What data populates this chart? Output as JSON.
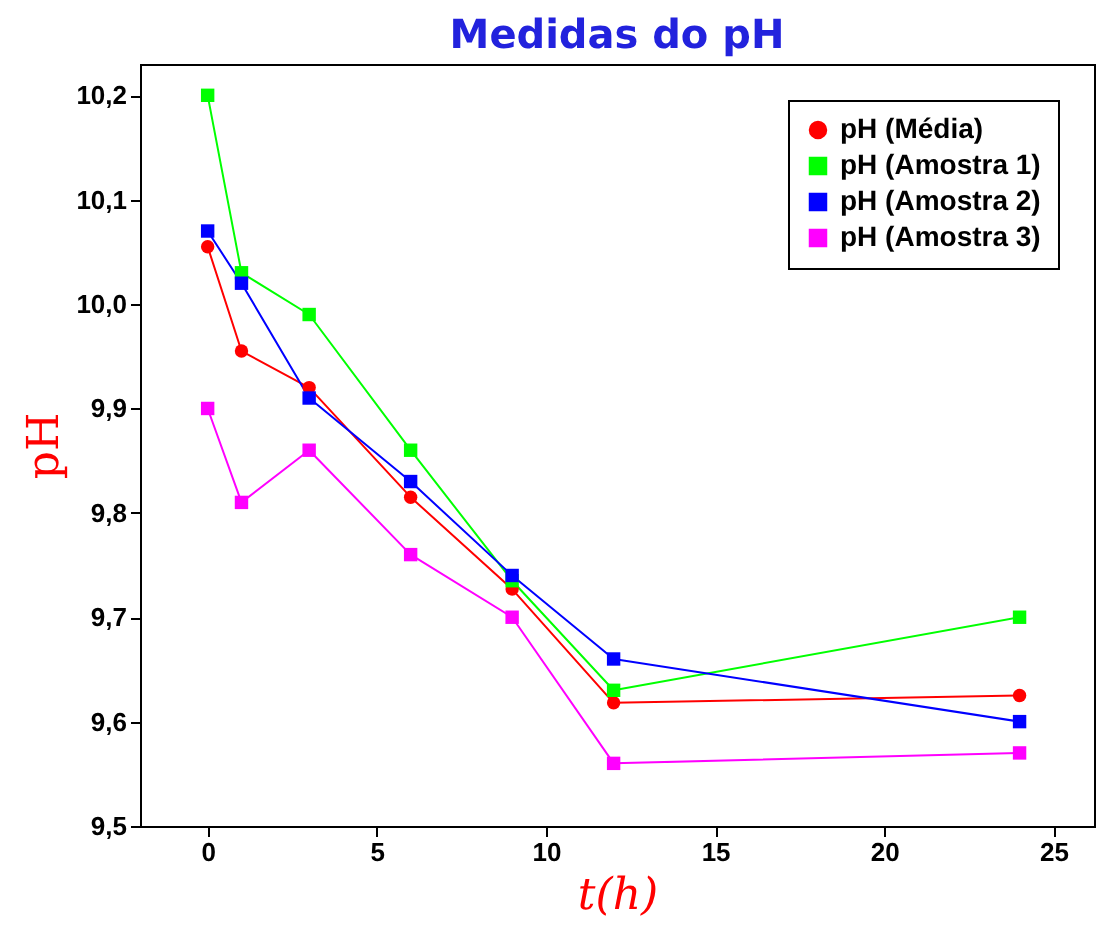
{
  "chart_data": {
    "type": "line",
    "title": "Medidas do pH",
    "xlabel": "t(h)",
    "ylabel": "pH",
    "x": [
      0,
      1,
      3,
      6,
      9,
      12,
      24
    ],
    "series": [
      {
        "name": "pH (Média)",
        "color": "#ff0000",
        "marker": "circle",
        "values": [
          10.055,
          9.955,
          9.92,
          9.815,
          9.727,
          9.618,
          9.625
        ]
      },
      {
        "name": "pH (Amostra 1)",
        "color": "#00ff00",
        "marker": "square",
        "values": [
          10.2,
          10.03,
          9.99,
          9.86,
          9.735,
          9.63,
          9.7
        ]
      },
      {
        "name": "pH (Amostra 2)",
        "color": "#0000ff",
        "marker": "square",
        "values": [
          10.07,
          10.02,
          9.91,
          9.83,
          9.74,
          9.66,
          9.6
        ]
      },
      {
        "name": "pH (Amostra 3)",
        "color": "#ff00ff",
        "marker": "square",
        "values": [
          9.9,
          9.81,
          9.86,
          9.76,
          9.7,
          9.56,
          9.57
        ]
      }
    ],
    "xlim": [
      -2,
      26.2
    ],
    "xticks": [
      0,
      5,
      10,
      15,
      20,
      25
    ],
    "ylim": [
      9.5,
      10.23
    ],
    "yticks": [
      {
        "value": 9.5,
        "label": "9,5"
      },
      {
        "value": 9.6,
        "label": "9,6"
      },
      {
        "value": 9.7,
        "label": "9,7"
      },
      {
        "value": 9.8,
        "label": "9,8"
      },
      {
        "value": 9.9,
        "label": "9,9"
      },
      {
        "value": 10.0,
        "label": "10,0"
      },
      {
        "value": 10.1,
        "label": "10,1"
      },
      {
        "value": 10.2,
        "label": "10,2"
      }
    ],
    "grid": false,
    "legend": "top right"
  }
}
